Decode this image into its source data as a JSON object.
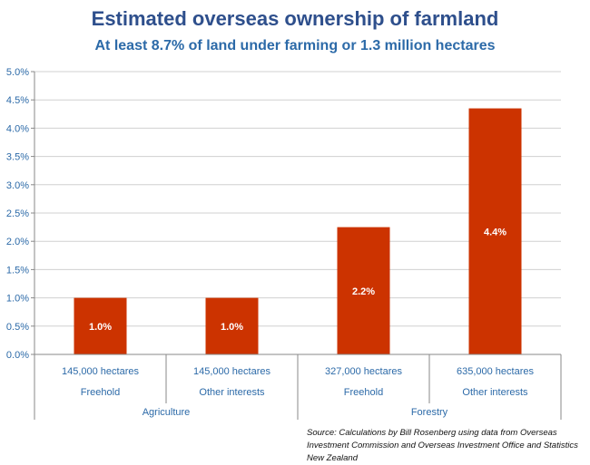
{
  "header": {
    "title": "Estimated overseas ownership of farmland",
    "subtitle": "At least 8.7% of land under farming or 1.3 million hectares"
  },
  "source": "Source: Calculations by Bill Rosenberg using data from Overseas Investment Commission and Overseas Investment Office and Statistics New Zealand",
  "colors": {
    "bar": "#cc3300",
    "axis_text": "#2c6aa8",
    "gridline": "#d0d0d0",
    "title": "#2e4f8c"
  },
  "chart_data": {
    "type": "bar",
    "title": "Estimated overseas ownership of farmland",
    "subtitle": "At least 8.7% of land under farming or 1.3 million hectares",
    "ylim": [
      0,
      0.05
    ],
    "y_ticks": [
      "0.0%",
      "0.5%",
      "1.0%",
      "1.5%",
      "2.0%",
      "2.5%",
      "3.0%",
      "3.5%",
      "4.0%",
      "4.5%",
      "5.0%"
    ],
    "grid": true,
    "legend": "none",
    "categories": [
      {
        "hectares": "145,000 hectares",
        "type": "Freehold",
        "group": "Agriculture"
      },
      {
        "hectares": "145,000 hectares",
        "type": "Other interests",
        "group": "Agriculture"
      },
      {
        "hectares": "327,000 hectares",
        "type": "Freehold",
        "group": "Forestry"
      },
      {
        "hectares": "635,000 hectares",
        "type": "Other interests",
        "group": "Forestry"
      }
    ],
    "groups": [
      "Agriculture",
      "Forestry"
    ],
    "values": [
      0.01,
      0.01,
      0.0225,
      0.0435
    ],
    "data_labels": [
      "1.0%",
      "1.0%",
      "2.2%",
      "4.4%"
    ]
  }
}
